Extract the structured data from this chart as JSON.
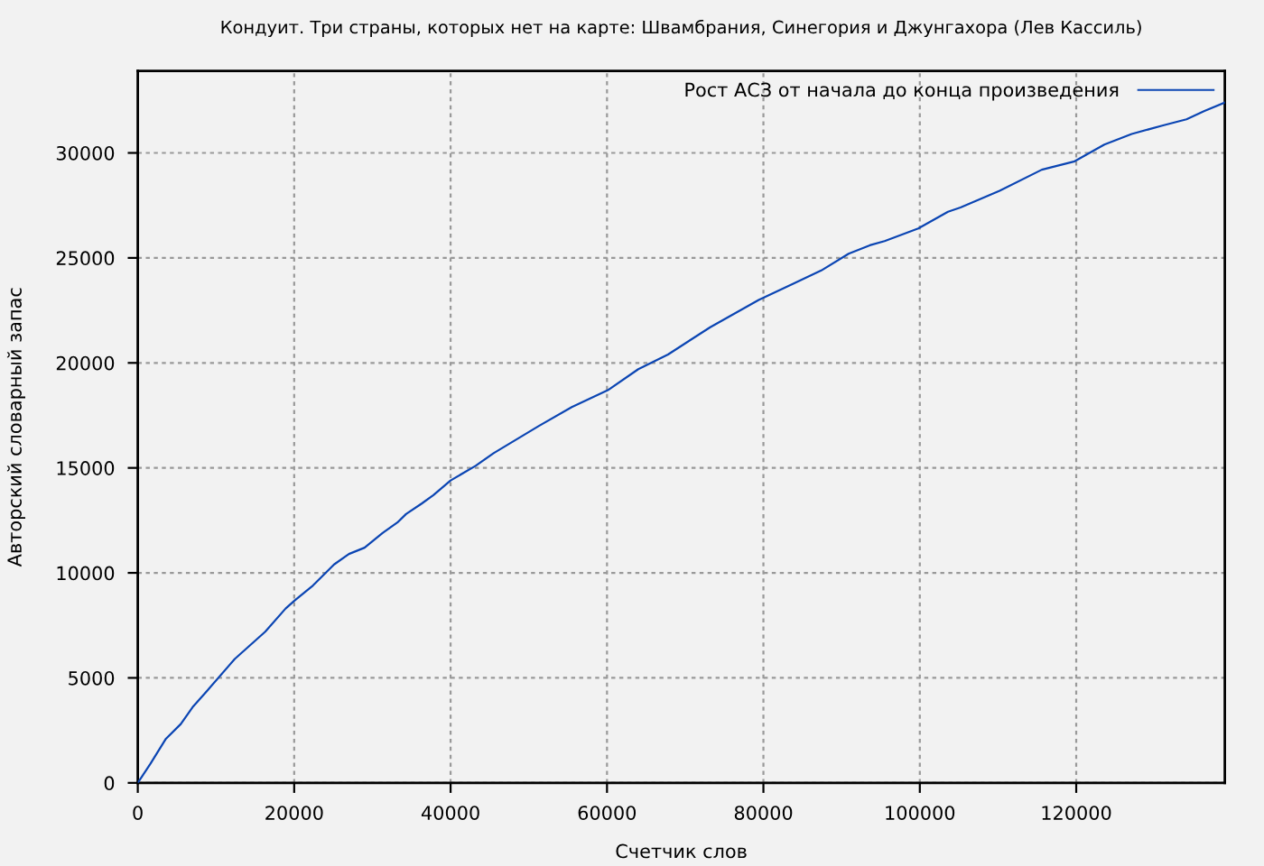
{
  "chart_data": {
    "type": "line",
    "title": "Кондуит. Три страны, которых нет на карте: Швамбрания, Синегория и Джунгахора (Лев Кассиль)",
    "xlabel": "Счетчик слов",
    "ylabel": "Авторский словарный запас",
    "x": [
      0,
      1600,
      3600,
      5500,
      7000,
      8900,
      12400,
      16300,
      18900,
      20100,
      22400,
      25100,
      27000,
      29000,
      31300,
      33200,
      34300,
      36300,
      37800,
      40000,
      43200,
      45500,
      51300,
      55500,
      60100,
      64000,
      67800,
      73200,
      79400,
      84000,
      87400,
      90900,
      93600,
      95500,
      99800,
      103600,
      105200,
      110200,
      115600,
      119800,
      123600,
      127100,
      131000,
      134100,
      136400,
      139000
    ],
    "series": [
      {
        "name": "Рост АСЗ от начала до конца произведения",
        "color": "#0b45b3",
        "values": [
          0,
          900,
          2100,
          2800,
          3600,
          4400,
          5900,
          7200,
          8300,
          8700,
          9400,
          10400,
          10900,
          11200,
          11900,
          12400,
          12800,
          13300,
          13700,
          14400,
          15100,
          15700,
          17000,
          17900,
          18700,
          19700,
          20400,
          21700,
          23000,
          23800,
          24400,
          25200,
          25600,
          25800,
          26400,
          27200,
          27400,
          28200,
          29200,
          29600,
          30400,
          30900,
          31300,
          31600,
          32000,
          32400
        ]
      }
    ],
    "xlim": [
      0,
      139000
    ],
    "ylim": [
      0,
      33900
    ],
    "xticks": [
      0,
      20000,
      40000,
      60000,
      80000,
      100000,
      120000
    ],
    "yticks": [
      0,
      5000,
      10000,
      15000,
      20000,
      25000,
      30000
    ],
    "grid": true,
    "legend": "top right",
    "line_style": "solid"
  }
}
